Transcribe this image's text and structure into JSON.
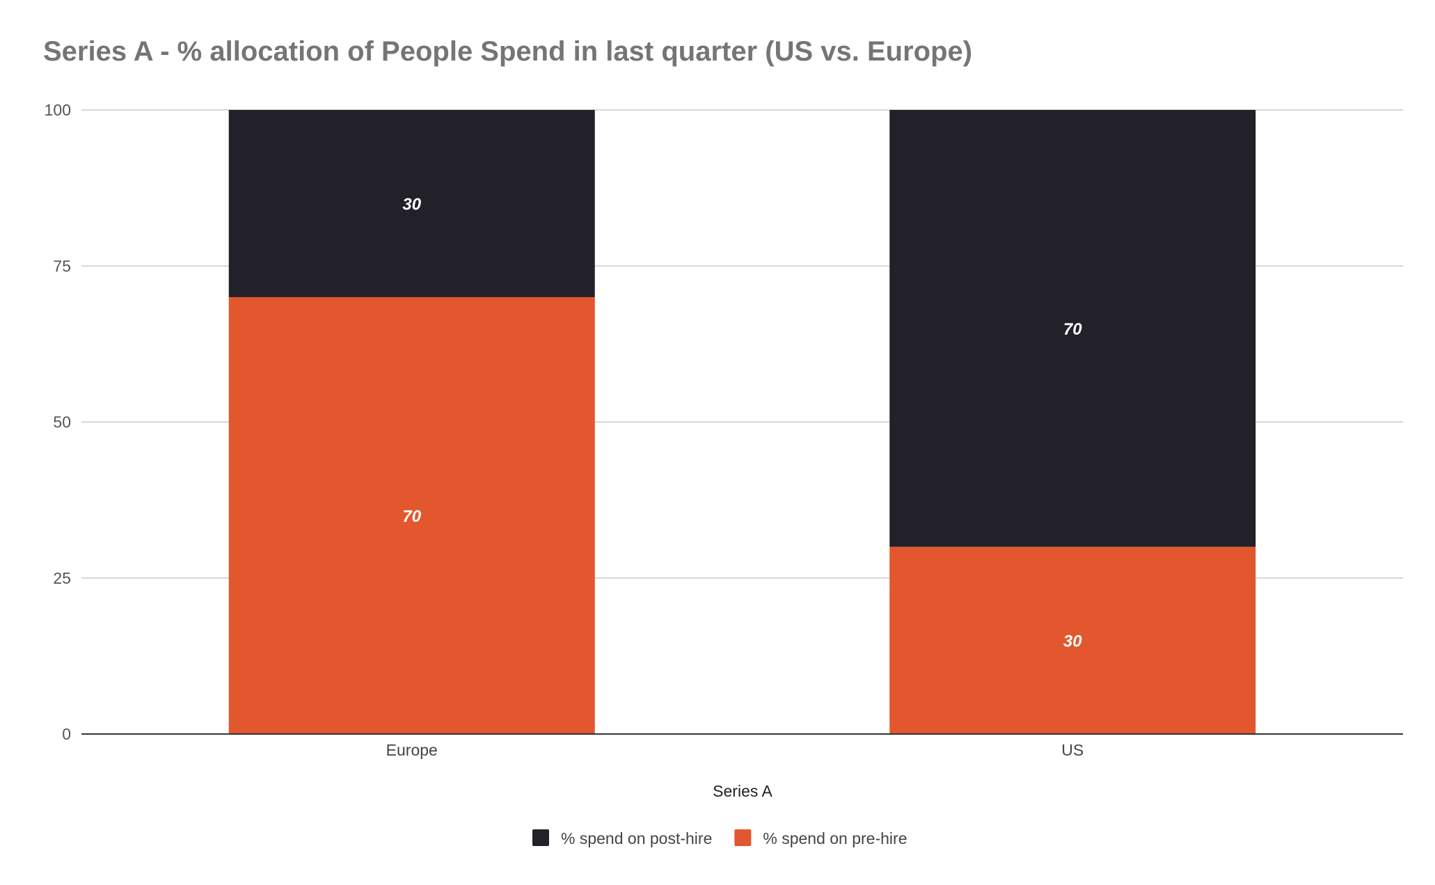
{
  "chart_data": {
    "type": "bar",
    "stacked": true,
    "title": "Series A - % allocation of People Spend in last quarter (US vs. Europe)",
    "xlabel": "Series A",
    "ylabel": "",
    "categories": [
      "Europe",
      "US"
    ],
    "series": [
      {
        "name": "% spend on pre-hire",
        "values": [
          70,
          30
        ],
        "color": "#E2572E"
      },
      {
        "name": "% spend on post-hire",
        "values": [
          30,
          70
        ],
        "color": "#22212A"
      }
    ],
    "legend_order": [
      1,
      0
    ],
    "ylim": [
      0,
      100
    ],
    "yticks": [
      0,
      25,
      50,
      75,
      100
    ],
    "grid": true,
    "legend_position": "bottom",
    "data_labels": true
  }
}
